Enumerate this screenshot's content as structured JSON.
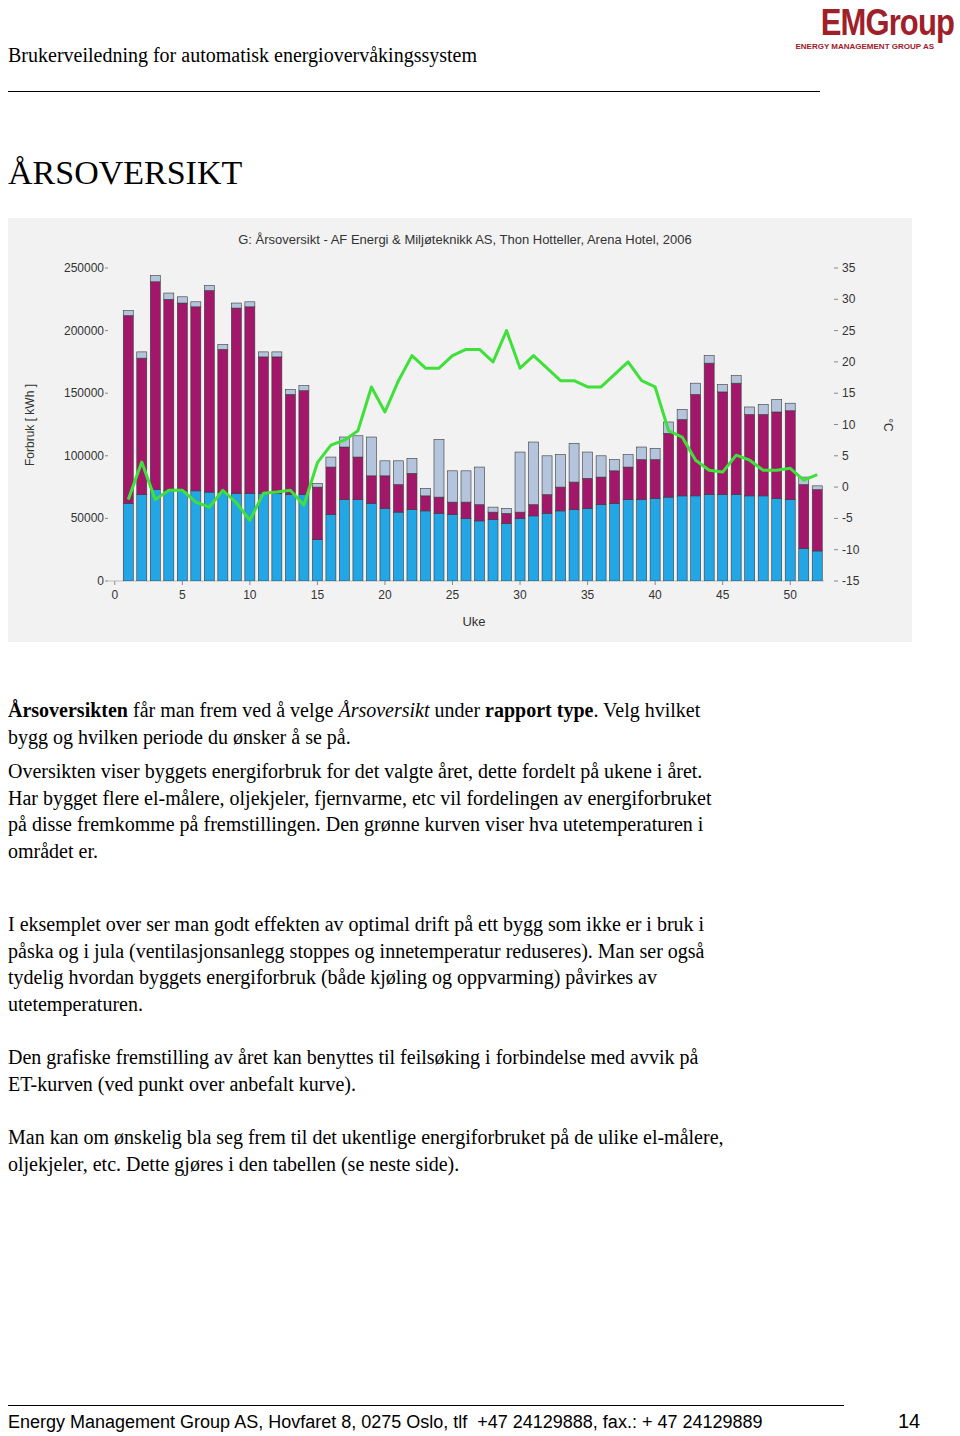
{
  "header": {
    "title": "Brukerveiledning for automatisk energiovervåkingssystem",
    "logo": "EMGroup",
    "logo_subtitle": "ENERGY MANAGEMENT GROUP AS"
  },
  "heading": "ÅRSOVERSIKT",
  "chart_data": {
    "type": "bar",
    "stacked": true,
    "grid": false,
    "title": "G: Årsoversikt - AF Energi & Miljøteknikk AS, Thon Hotteller, Arena Hotel, 2006",
    "x_label": "Uke",
    "y_label": "Forbruk [ kWh ]",
    "y2_label": "°C",
    "x": [
      1,
      2,
      3,
      4,
      5,
      6,
      7,
      8,
      9,
      10,
      11,
      12,
      13,
      14,
      15,
      16,
      17,
      18,
      19,
      20,
      21,
      22,
      23,
      24,
      25,
      26,
      27,
      28,
      29,
      30,
      31,
      32,
      33,
      34,
      35,
      36,
      37,
      38,
      39,
      40,
      41,
      42,
      43,
      44,
      45,
      46,
      47,
      48,
      49,
      50,
      51,
      52
    ],
    "xlim": [
      -0.5,
      52.5
    ],
    "xticks": [
      0,
      5,
      10,
      15,
      20,
      25,
      30,
      35,
      40,
      45,
      50
    ],
    "ylim": [
      0,
      250000
    ],
    "yticks": [
      0,
      50000,
      100000,
      150000,
      200000,
      250000
    ],
    "y2lim": [
      -15,
      35
    ],
    "y2ticks": [
      -15,
      -10,
      -5,
      0,
      5,
      10,
      15,
      20,
      25,
      30,
      35
    ],
    "series": [
      {
        "type": "bar",
        "color": "#23a6e6",
        "values": [
          62000,
          69000,
          73000,
          72000,
          72000,
          72000,
          71000,
          71000,
          70000,
          70000,
          70000,
          70000,
          69000,
          69000,
          33000,
          53000,
          65000,
          65000,
          62000,
          58000,
          55000,
          57000,
          56000,
          54000,
          53000,
          50000,
          48000,
          49000,
          46000,
          50000,
          52000,
          54000,
          56000,
          57000,
          58000,
          61000,
          62000,
          65000,
          65000,
          66000,
          67000,
          68000,
          68000,
          69000,
          69000,
          69000,
          68000,
          68000,
          66000,
          65000,
          26000,
          24000
        ]
      },
      {
        "type": "bar",
        "color": "#a3176b",
        "values": [
          150000,
          109000,
          166000,
          153000,
          150000,
          147000,
          161000,
          114000,
          148000,
          149000,
          109000,
          109000,
          80000,
          83000,
          42000,
          38000,
          42000,
          34000,
          22000,
          26000,
          22000,
          29000,
          12000,
          13000,
          10000,
          13000,
          13000,
          6000,
          8000,
          5000,
          9000,
          15000,
          19000,
          22000,
          24000,
          22000,
          26000,
          26000,
          32000,
          31000,
          51000,
          61000,
          81000,
          105000,
          82000,
          89000,
          65000,
          65000,
          69000,
          71000,
          51000,
          49000
        ]
      },
      {
        "type": "bar",
        "color": "#b4c4dc",
        "values": [
          4000,
          5000,
          5000,
          5000,
          5000,
          4000,
          4000,
          4000,
          4000,
          4000,
          4000,
          4000,
          4000,
          4000,
          3000,
          8000,
          8000,
          17000,
          31000,
          12000,
          19000,
          12000,
          6000,
          46000,
          25000,
          25000,
          30000,
          4000,
          4000,
          48000,
          50000,
          31000,
          26000,
          31000,
          21000,
          17000,
          9000,
          10000,
          10000,
          9000,
          9000,
          8000,
          9000,
          6000,
          6000,
          6000,
          6000,
          8000,
          10000,
          6000,
          6000,
          3000
        ]
      },
      {
        "type": "line",
        "axis": "y2",
        "color": "#3fe03a",
        "values": [
          -2,
          4,
          -2,
          -0.5,
          -0.5,
          -2.4,
          -3.2,
          -0.5,
          -2.5,
          -5.3,
          -1,
          -0.8,
          -0.5,
          -2.9,
          3.9,
          6.7,
          7.5,
          9,
          16,
          12,
          17,
          21,
          19,
          19,
          21,
          22,
          22,
          20,
          25,
          19,
          21,
          19,
          17,
          17,
          16,
          16,
          18,
          20,
          17,
          16,
          9,
          8,
          4.3,
          2.7,
          2.4,
          5.1,
          4.3,
          2.7,
          2.7,
          3,
          1.1,
          2
        ]
      }
    ]
  },
  "paragraphs": [
    [
      [
        {
          "text": "Årsoversikten",
          "style": "bold"
        },
        {
          "text": " får man frem ved å velge "
        },
        {
          "text": "Årsoversikt",
          "style": "italic"
        },
        {
          "text": " under "
        },
        {
          "text": "rapport type",
          "style": "bold"
        },
        {
          "text": ". Velg hvilket"
        }
      ],
      "bygg og hvilken periode du ønsker å se på."
    ],
    [
      "Oversikten viser byggets energiforbruk for det valgte året, dette fordelt på ukene i året.",
      "Har bygget flere el-målere, oljekjeler, fjernvarme, etc vil fordelingen av energiforbruket",
      "på disse fremkomme på fremstillingen. Den grønne kurven viser hva utetemperaturen i",
      "området er."
    ],
    [
      "I eksemplet over ser man godt effekten av optimal drift på ett bygg som ikke er i bruk i",
      "påska og i jula (ventilasjonsanlegg stoppes og innetemperatur reduseres). Man ser også",
      "tydelig hvordan byggets energiforbruk (både kjøling og oppvarming) påvirkes av",
      "utetemperaturen."
    ],
    [
      "Den grafiske fremstilling av året kan benyttes til feilsøking i forbindelse med avvik på",
      "ET-kurven (ved punkt over anbefalt kurve)."
    ],
    [
      "Man kan om ønskelig bla seg frem til det ukentlige energiforbruket på de ulike el-målere,",
      "oljekjeler, etc. Dette gjøres i den tabellen (se neste side)."
    ]
  ],
  "footer": {
    "text": "Energy Management Group AS, Hovfaret 8, 0275 Oslo, tlf  +47 24129888, fax.: + 47 24129889",
    "page": "14"
  }
}
